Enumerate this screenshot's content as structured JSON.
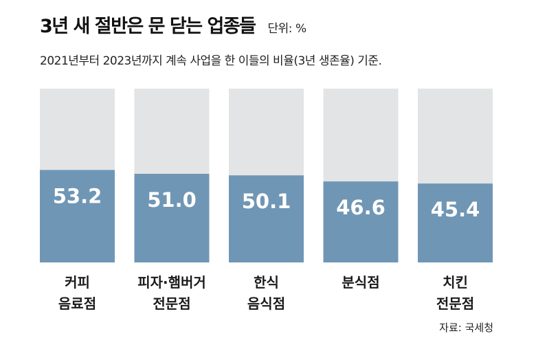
{
  "header": {
    "title": "3년 새 절반은 문 닫는 업종들",
    "unit": "단위: %",
    "subtitle": "2021년부터 2023년까지 계속 사업을 한 이들의 비율(3년 생존율) 기준."
  },
  "footer": {
    "source": "자료: 국세청"
  },
  "colors": {
    "bar_fill": "#7096b5",
    "bar_background": "#e3e4e6",
    "value_text": "#ffffff"
  },
  "chart_data": {
    "type": "bar",
    "categories": [
      [
        "커피",
        "음료점"
      ],
      [
        "피자·햄버거",
        "전문점"
      ],
      [
        "한식",
        "음식점"
      ],
      [
        "분식점"
      ],
      [
        "치킨",
        "전문점"
      ]
    ],
    "values": [
      53.2,
      51.0,
      50.1,
      46.6,
      45.4
    ],
    "value_labels": [
      "53.2",
      "51.0",
      "50.1",
      "46.6",
      "45.4"
    ],
    "ylim": [
      0,
      100
    ],
    "grid": false,
    "legend": "none"
  }
}
